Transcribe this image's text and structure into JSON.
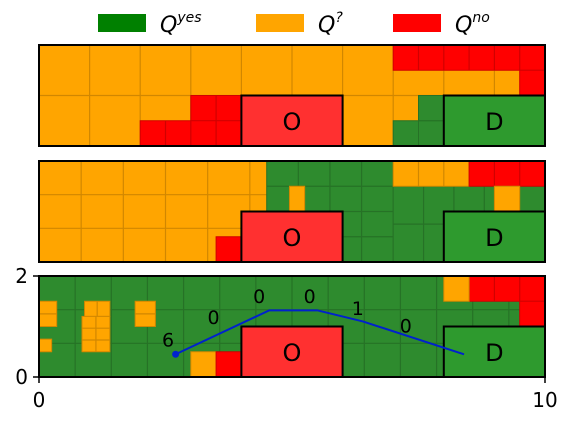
{
  "chart_data": {
    "type": "heatmap",
    "colors": {
      "yes": "#2e8b2e",
      "maybe": "#ffa500",
      "no": "#ff0000",
      "obstacle": "#ff3030",
      "goal": "#2e9a2e"
    },
    "legend": [
      {
        "key": "yes",
        "base": "Q",
        "sup": "yes",
        "color": "#008000"
      },
      {
        "key": "maybe",
        "base": "Q",
        "sup": "?",
        "color": "#ffa500"
      },
      {
        "key": "no",
        "base": "Q",
        "sup": "no",
        "color": "#ff0000"
      }
    ],
    "xlim": [
      0,
      10
    ],
    "ylim": [
      0,
      2
    ],
    "xticks": [
      "0",
      "10"
    ],
    "yticks": [
      "0",
      "2"
    ],
    "panels": [
      {
        "labels": {
          "O": "O",
          "D": "D"
        },
        "regions": [
          {
            "x0": 0,
            "x1": 10,
            "y0": 0,
            "y1": 2,
            "c": "maybe",
            "cells": 20
          },
          {
            "x0": 7,
            "x1": 10,
            "y0": 1.5,
            "y1": 2,
            "c": "no",
            "cells": 6
          },
          {
            "x0": 9.5,
            "x1": 10,
            "y0": 1,
            "y1": 1.5,
            "c": "no",
            "cells": 1
          },
          {
            "x0": 3,
            "x1": 4,
            "y0": 0.5,
            "y1": 1,
            "c": "no",
            "cells": 2
          },
          {
            "x0": 2,
            "x1": 4,
            "y0": 0,
            "y1": 0.5,
            "c": "no",
            "cells": 4
          },
          {
            "x0": 7.5,
            "x1": 8,
            "y0": 0,
            "y1": 1,
            "c": "yes",
            "cells": 2
          },
          {
            "x0": 7,
            "x1": 7.5,
            "y0": 0,
            "y1": 0.5,
            "c": "yes",
            "cells": 1
          }
        ]
      },
      {
        "labels": {
          "O": "O",
          "D": "D"
        },
        "regions": [
          {
            "x0": 0,
            "x1": 10,
            "y0": 0,
            "y1": 2,
            "c": "maybe",
            "cells": 30
          },
          {
            "x0": 4.5,
            "x1": 7,
            "y0": 0,
            "y1": 2,
            "c": "yes",
            "cells": 16
          },
          {
            "x0": 7,
            "x1": 10,
            "y0": 0,
            "y1": 1.5,
            "c": "yes",
            "cells": 12
          },
          {
            "x0": 7,
            "x1": 8.5,
            "y0": 1.5,
            "y1": 2,
            "c": "maybe",
            "cells": 3
          },
          {
            "x0": 8.5,
            "x1": 10,
            "y0": 1.5,
            "y1": 2,
            "c": "no",
            "cells": 3
          },
          {
            "x0": 9,
            "x1": 9.5,
            "y0": 1,
            "y1": 1.5,
            "c": "maybe",
            "cells": 1
          },
          {
            "x0": 4.95,
            "x1": 5.25,
            "y0": 1,
            "y1": 1.5,
            "c": "maybe",
            "cells": 1
          },
          {
            "x0": 3.5,
            "x1": 4,
            "y0": 0,
            "y1": 0.5,
            "c": "no",
            "cells": 1
          }
        ]
      },
      {
        "labels": {
          "O": "O",
          "D": "D"
        },
        "regions": [
          {
            "x0": 0,
            "x1": 10,
            "y0": 0,
            "y1": 2,
            "c": "yes",
            "cells": 40
          },
          {
            "x0": 8.5,
            "x1": 10,
            "y0": 1.5,
            "y1": 2,
            "c": "no",
            "cells": 3
          },
          {
            "x0": 8,
            "x1": 8.5,
            "y0": 1.5,
            "y1": 2,
            "c": "maybe",
            "cells": 1
          },
          {
            "x0": 9.5,
            "x1": 10,
            "y0": 1,
            "y1": 1.5,
            "c": "no",
            "cells": 1
          },
          {
            "x0": 0,
            "x1": 0.35,
            "y0": 1,
            "y1": 1.5,
            "c": "maybe",
            "cells": 2
          },
          {
            "x0": 0.9,
            "x1": 1.4,
            "y0": 1.2,
            "y1": 1.5,
            "c": "maybe",
            "cells": 2
          },
          {
            "x0": 0.85,
            "x1": 1.4,
            "y0": 0.5,
            "y1": 1.2,
            "c": "maybe",
            "cells": 6
          },
          {
            "x0": 1.9,
            "x1": 2.3,
            "y0": 1,
            "y1": 1.5,
            "c": "maybe",
            "cells": 2
          },
          {
            "x0": 0,
            "x1": 0.25,
            "y0": 0.5,
            "y1": 0.75,
            "c": "maybe",
            "cells": 1
          },
          {
            "x0": 3,
            "x1": 3.5,
            "y0": 0,
            "y1": 0.5,
            "c": "maybe",
            "cells": 1
          },
          {
            "x0": 3.5,
            "x1": 4,
            "y0": 0,
            "y1": 0.5,
            "c": "no",
            "cells": 1
          }
        ]
      }
    ],
    "obstacle": {
      "label": "O",
      "x0": 4,
      "x1": 6,
      "y0": 0,
      "y1": 1
    },
    "goal": {
      "label": "D",
      "x0": 8,
      "x1": 10,
      "y0": 0,
      "y1": 1
    },
    "path": {
      "color": "#0022cc",
      "points": [
        [
          2.7,
          0.45
        ],
        [
          4.55,
          1.32
        ],
        [
          5.5,
          1.32
        ],
        [
          6.4,
          1.1
        ],
        [
          8.4,
          0.45
        ]
      ],
      "labels": [
        {
          "text": "6",
          "x": 2.55,
          "y": 0.6
        },
        {
          "text": "0",
          "x": 3.45,
          "y": 1.05
        },
        {
          "text": "0",
          "x": 4.35,
          "y": 1.47
        },
        {
          "text": "0",
          "x": 5.35,
          "y": 1.47
        },
        {
          "text": "1",
          "x": 6.3,
          "y": 1.23
        },
        {
          "text": "0",
          "x": 7.25,
          "y": 0.88
        }
      ]
    }
  }
}
